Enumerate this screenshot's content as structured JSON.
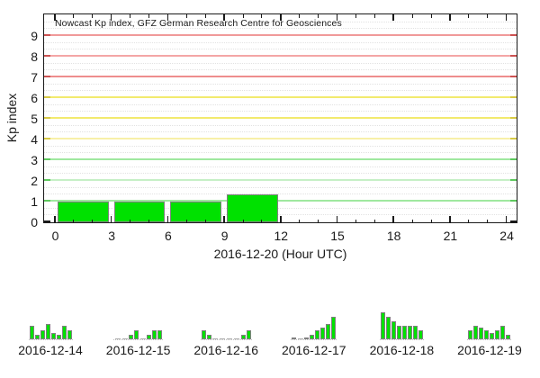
{
  "chart_data": [
    {
      "type": "bar",
      "title": "Nowcast Kp index, GFZ German Research Centre for Geosciences",
      "xlabel": "2016-12-20 (Hour UTC)",
      "ylabel": "Kp index",
      "x_ticks": [
        0,
        3,
        6,
        9,
        12,
        15,
        18,
        21,
        24
      ],
      "y_ticks": [
        0,
        1,
        2,
        3,
        4,
        5,
        6,
        7,
        8,
        9
      ],
      "xlim": [
        -0.6,
        24.6
      ],
      "ylim": [
        0,
        10
      ],
      "grid": "on",
      "legend": "none",
      "bar_width_hours": 3,
      "bars": [
        {
          "start_hour": 0,
          "end_hour": 3,
          "kp": 1.0
        },
        {
          "start_hour": 3,
          "end_hour": 6,
          "kp": 1.0
        },
        {
          "start_hour": 6,
          "end_hour": 9,
          "kp": 1.0
        },
        {
          "start_hour": 9,
          "end_hour": 12,
          "kp": 1.33
        }
      ]
    },
    {
      "type": "bar",
      "date": "2016-12-14",
      "kp_3h": [
        2,
        0.67,
        1.33,
        2.33,
        1,
        0.67,
        2,
        1.33
      ]
    },
    {
      "type": "bar",
      "date": "2016-12-15",
      "kp_3h": [
        0,
        0,
        0.67,
        1.33,
        0,
        0.67,
        1.33,
        1.33
      ]
    },
    {
      "type": "bar",
      "date": "2016-12-16",
      "kp_3h": [
        1.33,
        0.67,
        0,
        0,
        0,
        0,
        0.67,
        1.33
      ]
    },
    {
      "type": "bar",
      "date": "2016-12-17",
      "kp_3h": [
        0.33,
        0,
        0.33,
        0.67,
        1.33,
        1.67,
        2.33,
        3.33
      ]
    },
    {
      "type": "bar",
      "date": "2016-12-18",
      "kp_3h": [
        4,
        3.33,
        2.67,
        2,
        2,
        2,
        2,
        1.33
      ]
    },
    {
      "type": "bar",
      "date": "2016-12-19",
      "kp_3h": [
        1.33,
        2,
        1.67,
        1.33,
        1,
        1.33,
        2,
        0.67
      ]
    }
  ],
  "colors": {
    "bar_fill": "#00e100",
    "bar_border": "#808080",
    "zero_dash": "#b0b0b0",
    "axis": "#1a1a1a",
    "minor_grid": "#e2e2e2",
    "grid_by_kp": {
      "1": "#a0e8a0",
      "2": "#c6f0c6",
      "3": "#a0e8a0",
      "4": "#f8f0a8",
      "5": "#f2ea6e",
      "6": "#f2ea6e",
      "7": "#ee8d8d",
      "8": "#f4a6a6",
      "9": "#f09a9a"
    },
    "tick_by_kp": {
      "0": "#1a1a1a",
      "1": "#5fc95f",
      "2": "#5fc95f",
      "3": "#5fc95f",
      "4": "#d8ca45",
      "5": "#d8ca45",
      "6": "#d8ca45",
      "7": "#cc5252",
      "8": "#cc5252",
      "9": "#cc5252"
    }
  }
}
